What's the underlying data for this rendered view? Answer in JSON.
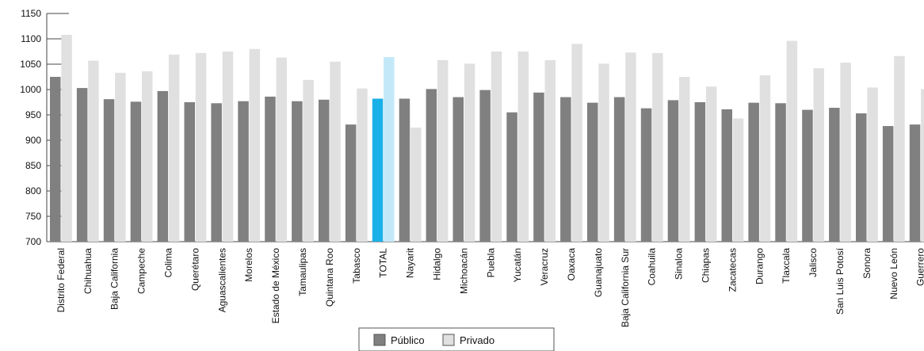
{
  "chart_data": {
    "type": "bar",
    "title": "",
    "xlabel": "",
    "ylabel": "",
    "ylim": [
      700,
      1150
    ],
    "yticks": [
      700,
      750,
      800,
      850,
      900,
      950,
      1000,
      1050,
      1100,
      1150
    ],
    "grid": false,
    "legend_position": "bottom-center",
    "categories": [
      "Distrito Federal",
      "Chihuahua",
      "Baja California",
      "Campeche",
      "Colima",
      "Querétaro",
      "Aguascalientes",
      "Morelos",
      "Estado de México",
      "Tamaulipas",
      "Quintana Roo",
      "Tabasco",
      "TOTAL",
      "Nayarit",
      "Hidalgo",
      "Michoacán",
      "Puebla",
      "Yucatán",
      "Veracruz",
      "Oaxaca",
      "Guanajuato",
      "Baja California Sur",
      "Coahuila",
      "Sinaloa",
      "Chiapas",
      "Zacatecas",
      "Durango",
      "Tlaxcala",
      "Jalisco",
      "San Luis Potosí",
      "Sonora",
      "Nuevo León",
      "Guerrero"
    ],
    "highlight_category": "TOTAL",
    "series": [
      {
        "name": "Público",
        "color": "#808080",
        "highlight_color": "#1ab0e8",
        "values": [
          1025,
          1003,
          981,
          976,
          997,
          975,
          973,
          977,
          986,
          977,
          980,
          931,
          982,
          982,
          1001,
          985,
          999,
          955,
          994,
          985,
          974,
          985,
          963,
          979,
          975,
          961,
          974,
          973,
          960,
          964,
          953,
          928,
          931
        ]
      },
      {
        "name": "Privado",
        "color": "#e0e0e0",
        "highlight_color": "#c3e9f8",
        "values": [
          1108,
          1057,
          1033,
          1036,
          1069,
          1072,
          1075,
          1080,
          1063,
          1019,
          1055,
          1002,
          1064,
          925,
          1058,
          1051,
          1075,
          1075,
          1058,
          1090,
          1051,
          1073,
          1072,
          1025,
          1006,
          943,
          1028,
          1096,
          1042,
          1053,
          1004,
          1066,
          1001
        ]
      }
    ]
  }
}
